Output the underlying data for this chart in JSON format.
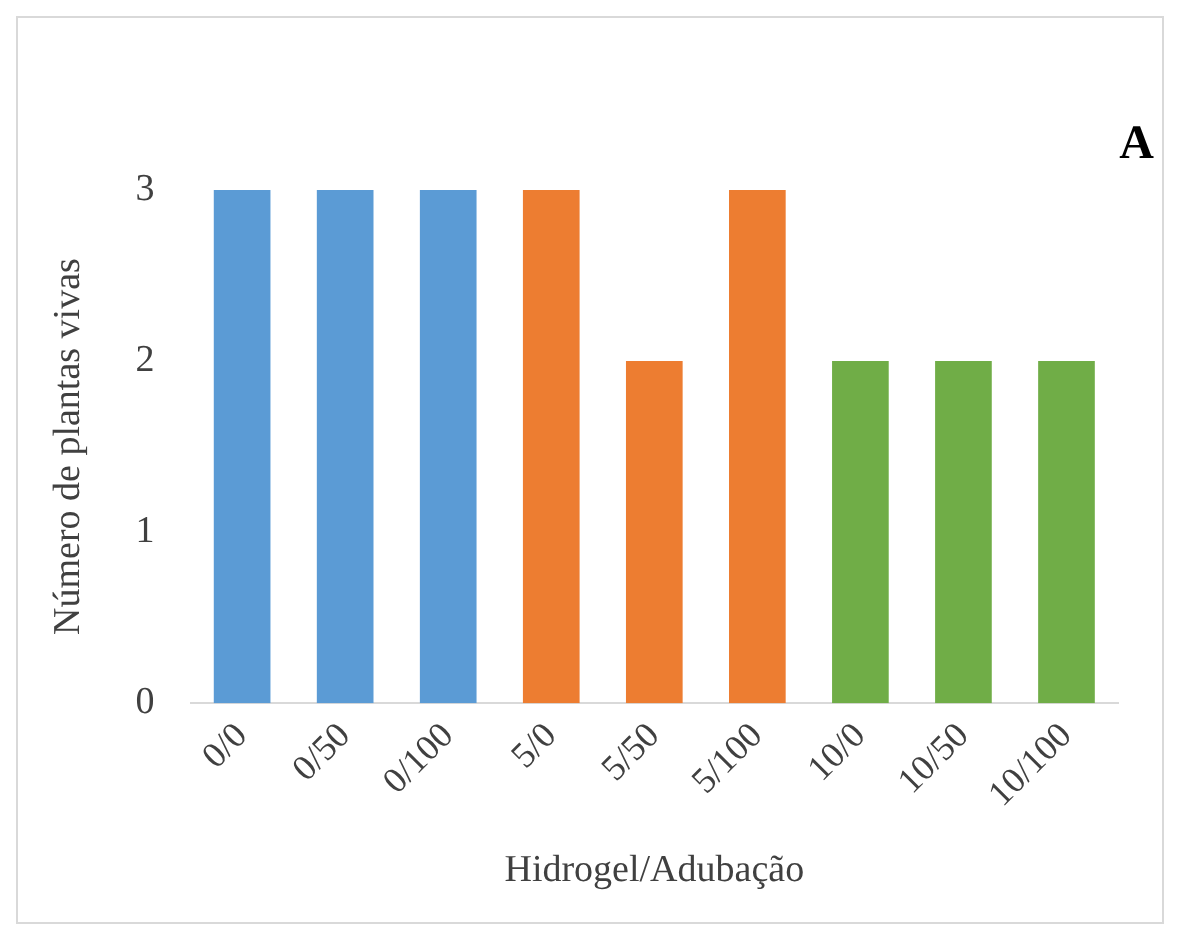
{
  "chart_data": {
    "type": "bar",
    "xlabel": "Hidrogel/Adubação",
    "ylabel": "Número de plantas vivas",
    "annotations": [
      "A"
    ],
    "categories": [
      "0/0",
      "0/50",
      "0/100",
      "5/0",
      "5/50",
      "5/100",
      "10/0",
      "10/50",
      "10/100"
    ],
    "values": [
      3,
      3,
      3,
      3,
      2,
      3,
      2,
      2,
      2
    ],
    "colors": [
      "#5b9bd5",
      "#5b9bd5",
      "#5b9bd5",
      "#ed7d31",
      "#ed7d31",
      "#ed7d31",
      "#70ad47",
      "#70ad47",
      "#70ad47"
    ],
    "ylim": [
      0,
      3
    ],
    "yticks": [
      0,
      1,
      2,
      3
    ],
    "grid": false,
    "legend": false
  }
}
